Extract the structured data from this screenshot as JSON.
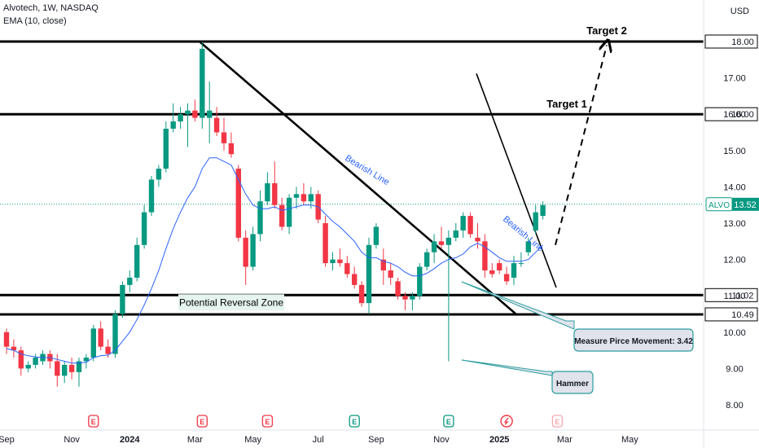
{
  "header": {
    "symbol_line": "Alvotech, 1W, NASDAQ",
    "indicator_line": "EMA (10, close)",
    "currency": "USD"
  },
  "chart_data": {
    "type": "candlestick",
    "symbol": "ALVO",
    "last_price": "13.52",
    "ylim": [
      7.7,
      18.9
    ],
    "y_ticks": [
      {
        "v": 8,
        "label": "8.00"
      },
      {
        "v": 9,
        "label": "9.00"
      },
      {
        "v": 10,
        "label": "10.00"
      },
      {
        "v": 11,
        "label": "11.00"
      },
      {
        "v": 12,
        "label": "12.00"
      },
      {
        "v": 13,
        "label": "13.00"
      },
      {
        "v": 14,
        "label": "14.00"
      },
      {
        "v": 15,
        "label": "15.00"
      },
      {
        "v": 16,
        "label": "16.00"
      },
      {
        "v": 17,
        "label": "17.00"
      }
    ],
    "level_labels": [
      {
        "v": 18.0,
        "label": "18.00"
      },
      {
        "v": 16.0,
        "label": "16.00"
      },
      {
        "v": 11.02,
        "label": "11.02"
      },
      {
        "v": 10.49,
        "label": "10.49"
      }
    ],
    "x_ticks": [
      {
        "i": 0,
        "label": "Sep",
        "bold": false
      },
      {
        "i": 9,
        "label": "Nov",
        "bold": false
      },
      {
        "i": 17,
        "label": "2024",
        "bold": true
      },
      {
        "i": 26,
        "label": "Mar",
        "bold": false
      },
      {
        "i": 34,
        "label": "May",
        "bold": false
      },
      {
        "i": 43,
        "label": "Jul",
        "bold": false
      },
      {
        "i": 51,
        "label": "Sep",
        "bold": false
      },
      {
        "i": 60,
        "label": "Nov",
        "bold": false
      },
      {
        "i": 68,
        "label": "2025",
        "bold": true
      },
      {
        "i": 77,
        "label": "Mar",
        "bold": false
      },
      {
        "i": 86,
        "label": "May",
        "bold": false
      }
    ],
    "earnings_markers": [
      {
        "i": 12,
        "kind": "E",
        "color": "#f23645"
      },
      {
        "i": 27,
        "kind": "E",
        "color": "#f23645"
      },
      {
        "i": 36,
        "kind": "E",
        "color": "#f23645"
      },
      {
        "i": 48,
        "kind": "E",
        "color": "#089981"
      },
      {
        "i": 61,
        "kind": "E",
        "color": "#089981"
      },
      {
        "i": 69,
        "kind": "D",
        "color": "#f23645"
      },
      {
        "i": 76,
        "kind": "E",
        "color": "#f7a8b0"
      }
    ],
    "candles": [
      [
        10.0,
        10.1,
        9.4,
        9.6
      ],
      [
        9.6,
        9.8,
        9.3,
        9.5
      ],
      [
        9.5,
        9.6,
        8.8,
        9.0
      ],
      [
        9.0,
        9.2,
        8.9,
        9.1
      ],
      [
        9.1,
        9.4,
        9.0,
        9.3
      ],
      [
        9.2,
        9.5,
        9.1,
        9.4
      ],
      [
        9.4,
        9.5,
        9.0,
        9.2
      ],
      [
        9.2,
        9.4,
        8.5,
        8.8
      ],
      [
        8.8,
        9.2,
        8.6,
        9.1
      ],
      [
        9.1,
        9.3,
        8.7,
        8.9
      ],
      [
        8.9,
        9.3,
        8.5,
        9.2
      ],
      [
        9.2,
        9.4,
        9.0,
        9.3
      ],
      [
        9.3,
        10.2,
        9.2,
        10.1
      ],
      [
        10.1,
        10.3,
        9.5,
        9.6
      ],
      [
        9.6,
        9.8,
        9.3,
        9.4
      ],
      [
        9.4,
        10.6,
        9.3,
        10.5
      ],
      [
        10.5,
        11.4,
        10.4,
        11.3
      ],
      [
        11.3,
        11.7,
        11.1,
        11.5
      ],
      [
        11.5,
        12.6,
        11.4,
        12.4
      ],
      [
        12.4,
        13.5,
        12.3,
        13.3
      ],
      [
        13.3,
        14.3,
        13.2,
        14.2
      ],
      [
        14.2,
        14.6,
        14.0,
        14.5
      ],
      [
        14.5,
        15.8,
        14.4,
        15.6
      ],
      [
        15.6,
        16.3,
        15.5,
        15.8
      ],
      [
        15.8,
        16.2,
        15.6,
        16.0
      ],
      [
        16.0,
        16.3,
        15.1,
        16.1
      ],
      [
        16.1,
        16.4,
        15.8,
        15.9
      ],
      [
        15.9,
        18.0,
        15.6,
        17.8
      ],
      [
        15.9,
        16.9,
        15.2,
        16.1
      ],
      [
        15.9,
        16.2,
        15.4,
        15.5
      ],
      [
        15.5,
        15.9,
        15.0,
        15.2
      ],
      [
        15.2,
        15.5,
        14.8,
        14.9
      ],
      [
        14.5,
        14.6,
        12.5,
        12.6
      ],
      [
        12.6,
        12.8,
        11.3,
        11.8
      ],
      [
        11.8,
        12.9,
        11.7,
        12.7
      ],
      [
        12.7,
        13.9,
        12.5,
        13.6
      ],
      [
        13.6,
        14.4,
        13.5,
        14.1
      ],
      [
        14.1,
        14.7,
        13.4,
        13.5
      ],
      [
        13.5,
        13.7,
        12.8,
        12.9
      ],
      [
        12.9,
        13.8,
        12.7,
        13.7
      ],
      [
        13.7,
        14.0,
        13.4,
        13.8
      ],
      [
        13.8,
        14.1,
        13.5,
        13.6
      ],
      [
        13.6,
        14.0,
        13.4,
        13.8
      ],
      [
        13.8,
        13.9,
        13.0,
        13.1
      ],
      [
        13.0,
        13.2,
        11.8,
        11.9
      ],
      [
        11.9,
        12.2,
        11.7,
        12.0
      ],
      [
        12.0,
        12.3,
        11.8,
        11.9
      ],
      [
        11.9,
        12.1,
        11.5,
        11.6
      ],
      [
        11.6,
        11.8,
        11.2,
        11.3
      ],
      [
        11.3,
        11.4,
        10.7,
        10.8
      ],
      [
        10.8,
        12.6,
        10.5,
        12.4
      ],
      [
        12.4,
        13.0,
        12.3,
        12.9
      ],
      [
        12.0,
        12.3,
        11.3,
        11.7
      ],
      [
        11.7,
        11.9,
        11.3,
        11.5
      ],
      [
        11.4,
        11.5,
        10.9,
        11.0
      ],
      [
        11.0,
        11.1,
        10.6,
        10.9
      ],
      [
        10.9,
        11.1,
        10.6,
        11.0
      ],
      [
        11.0,
        11.9,
        10.9,
        11.8
      ],
      [
        11.8,
        12.3,
        11.7,
        12.2
      ],
      [
        12.2,
        12.7,
        11.9,
        12.5
      ],
      [
        12.5,
        12.9,
        12.3,
        12.4
      ],
      [
        12.4,
        12.8,
        9.2,
        12.6
      ],
      [
        12.6,
        13.0,
        12.5,
        12.8
      ],
      [
        12.8,
        13.3,
        12.6,
        13.2
      ],
      [
        13.2,
        13.3,
        12.6,
        12.7
      ],
      [
        12.6,
        13.0,
        12.3,
        12.5
      ],
      [
        12.5,
        12.7,
        11.5,
        11.7
      ],
      [
        11.7,
        11.9,
        11.5,
        11.6
      ],
      [
        11.9,
        12.0,
        11.6,
        11.7
      ],
      [
        11.6,
        11.8,
        11.3,
        11.4
      ],
      [
        11.5,
        12.1,
        11.3,
        11.9
      ],
      [
        11.9,
        12.2,
        11.8,
        11.9
      ],
      [
        12.2,
        12.6,
        12.1,
        12.5
      ],
      [
        12.8,
        13.5,
        12.7,
        13.3
      ],
      [
        13.2,
        13.6,
        13.1,
        13.5
      ]
    ],
    "ema": [
      9.55,
      9.5,
      9.4,
      9.35,
      9.32,
      9.3,
      9.3,
      9.25,
      9.2,
      9.15,
      9.15,
      9.17,
      9.3,
      9.35,
      9.37,
      9.5,
      9.75,
      10.0,
      10.35,
      10.75,
      11.2,
      11.7,
      12.3,
      12.85,
      13.3,
      13.7,
      14.0,
      14.5,
      14.8,
      14.8,
      14.7,
      14.6,
      14.2,
      13.8,
      13.5,
      13.4,
      13.4,
      13.45,
      13.35,
      13.4,
      13.45,
      13.5,
      13.5,
      13.45,
      13.25,
      13.05,
      12.9,
      12.7,
      12.5,
      12.2,
      12.05,
      12.05,
      11.95,
      11.9,
      11.8,
      11.65,
      11.55,
      11.55,
      11.62,
      11.75,
      11.9,
      12.0,
      12.05,
      12.15,
      12.35,
      12.45,
      12.35,
      12.2,
      12.05,
      11.95,
      11.95,
      11.95,
      12.0,
      12.2,
      12.4
    ]
  },
  "annotations": {
    "target1": "Target 1",
    "target2": "Target 2",
    "reversal_zone": "Potential Reversal Zone",
    "bearish_line": "Bearish Line",
    "measure": "Measure Pirce Movement: 3.42",
    "hammer": "Hammer"
  },
  "colors": {
    "up": "#089981",
    "down": "#f23645",
    "ema": "#2962ff",
    "price_line": "#089981",
    "callout_border": "#2a9d9f",
    "callout_fill": "#e0e3eb"
  }
}
